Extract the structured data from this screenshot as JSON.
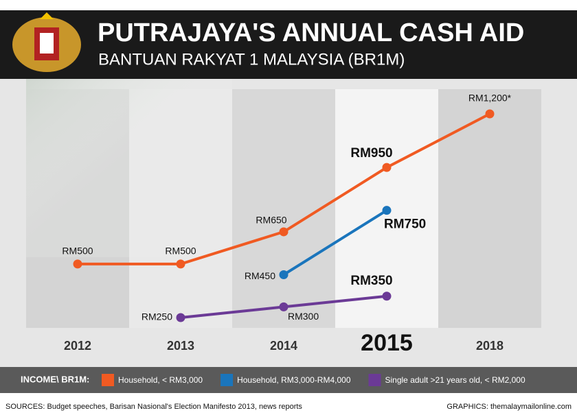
{
  "chart_data": {
    "type": "line",
    "title": "PUTRAJAYA'S ANNUAL CASH AID",
    "subtitle": "BANTUAN RAKYAT 1 MALAYSIA (BR1M)",
    "legend_title": "INCOME\\ BR1M:",
    "source": "SOURCES:  Budget speeches, Barisan Nasional's Election Manifesto 2013, news reports",
    "credit": "GRAPHICS: themalaymailonline.com",
    "categories": [
      "2012",
      "2013",
      "2014",
      "2015",
      "2018"
    ],
    "series": [
      {
        "name": "Household, < RM3,000",
        "color": "#f05a22",
        "values": [
          500,
          500,
          650,
          950,
          1200
        ],
        "value_labels": [
          "RM500",
          "RM500",
          "RM650",
          "RM950",
          "RM1,200*"
        ]
      },
      {
        "name": "Household, RM3,000-RM4,000",
        "color": "#1a75bc",
        "values": [
          null,
          null,
          450,
          750,
          null
        ],
        "value_labels": [
          null,
          null,
          "RM450",
          "RM750",
          null
        ]
      },
      {
        "name": "Single adult >21 years old, < RM2,000",
        "color": "#6b3a96",
        "values": [
          null,
          250,
          300,
          350,
          null
        ],
        "value_labels": [
          null,
          "RM250",
          "RM300",
          "RM350",
          null
        ]
      }
    ]
  }
}
